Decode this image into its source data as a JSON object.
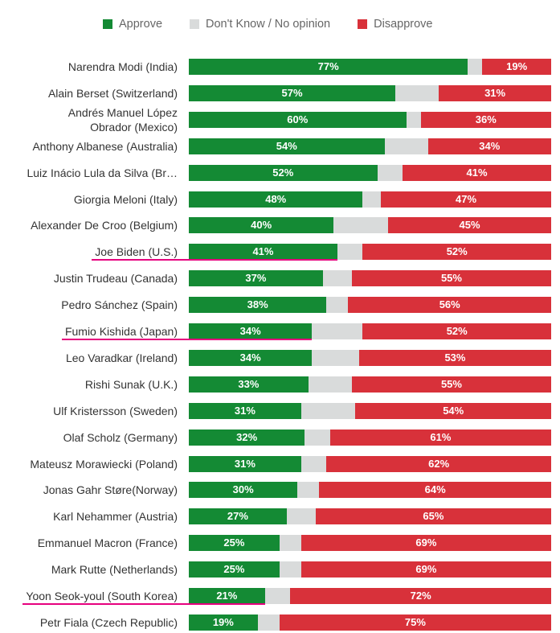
{
  "chart_data": {
    "type": "bar",
    "orientation": "horizontal-stacked",
    "legend": [
      {
        "name": "Approve",
        "color": "#148a34"
      },
      {
        "name": "Don't Know / No opinion",
        "color": "#d9dbdb"
      },
      {
        "name": "Disapprove",
        "color": "#d8313a"
      }
    ],
    "categories": [
      "Narendra Modi (India)",
      "Alain Berset (Switzerland)",
      "Andrés Manuel López Obrador (Mexico)",
      "Anthony Albanese (Australia)",
      "Luiz Inácio Lula da Silva (Br…",
      "Giorgia Meloni (Italy)",
      "Alexander De Croo (Belgium)",
      "Joe Biden (U.S.)",
      "Justin Trudeau (Canada)",
      "Pedro Sánchez (Spain)",
      "Fumio Kishida (Japan)",
      "Leo Varadkar (Ireland)",
      "Rishi Sunak (U.K.)",
      "Ulf Kristersson (Sweden)",
      "Olaf Scholz (Germany)",
      "Mateusz Morawiecki (Poland)",
      "Jonas Gahr Støre(Norway)",
      "Karl Nehammer (Austria)",
      "Emmanuel Macron (France)",
      "Mark Rutte (Netherlands)",
      "Yoon Seok-youl (South Korea)",
      "Petr Fiala (Czech Republic)"
    ],
    "series": [
      {
        "name": "Approve",
        "values": [
          77,
          57,
          60,
          54,
          52,
          48,
          40,
          41,
          37,
          38,
          34,
          34,
          33,
          31,
          32,
          31,
          30,
          27,
          25,
          25,
          21,
          19
        ]
      },
      {
        "name": "Don't Know / No opinion",
        "values": [
          4,
          12,
          4,
          12,
          7,
          5,
          15,
          7,
          8,
          6,
          14,
          13,
          12,
          15,
          7,
          7,
          6,
          8,
          6,
          6,
          7,
          6
        ]
      },
      {
        "name": "Disapprove",
        "values": [
          19,
          31,
          36,
          34,
          41,
          47,
          45,
          52,
          55,
          56,
          52,
          53,
          55,
          54,
          61,
          62,
          64,
          65,
          69,
          69,
          72,
          75
        ]
      }
    ],
    "value_labels": {
      "approve": [
        "77%",
        "57%",
        "60%",
        "54%",
        "52%",
        "48%",
        "40%",
        "41%",
        "37%",
        "38%",
        "34%",
        "34%",
        "33%",
        "31%",
        "32%",
        "31%",
        "30%",
        "27%",
        "25%",
        "25%",
        "21%",
        "19%"
      ],
      "disapprove": [
        "19%",
        "31%",
        "36%",
        "34%",
        "41%",
        "47%",
        "45%",
        "52%",
        "55%",
        "56%",
        "52%",
        "53%",
        "55%",
        "54%",
        "61%",
        "62%",
        "64%",
        "65%",
        "69%",
        "69%",
        "72%",
        "75%"
      ]
    },
    "highlighted": [
      "Joe Biden (U.S.)",
      "Fumio Kishida (Japan)",
      "Yoon Seok-youl (South Korea)"
    ],
    "highlight_color": "#e6007e",
    "xlim": [
      0,
      100
    ],
    "title": "",
    "xlabel": "",
    "ylabel": ""
  }
}
